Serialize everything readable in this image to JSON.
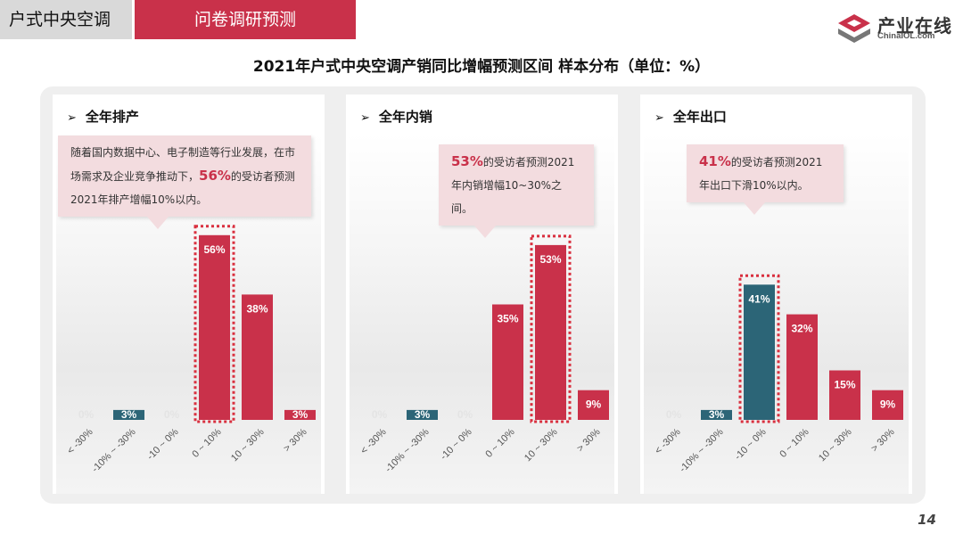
{
  "header": {
    "section_label": "户式中央空调",
    "active_tab": "问卷调研预测"
  },
  "logo": {
    "name_cn": "产业在线",
    "name_en": "ChinaIOL.com"
  },
  "title": "2021年户式中央空调产销同比增幅预测区间  样本分布（单位：%）",
  "page_number": "14",
  "colors": {
    "accent_red": "#c9314a",
    "teal": "#2c6577",
    "highlight_border": "#d9303f"
  },
  "panels": [
    {
      "title": "全年排产",
      "callout": {
        "text_before": "随着国内数据中心、电子制造等行业发展，在市场需求及企业竞争推动下，",
        "highlight": "56%",
        "text_after": "的受访者预测2021年排产增幅10%以内。"
      }
    },
    {
      "title": "全年内销",
      "callout": {
        "text_before": "",
        "highlight": "53%",
        "text_after": "的受访者预测2021年内销增幅10~30%之间。"
      }
    },
    {
      "title": "全年出口",
      "callout": {
        "text_before": "",
        "highlight": "41%",
        "text_after": "的受访者预测2021年出口下滑10%以内。"
      }
    }
  ],
  "chart_data": [
    {
      "type": "bar",
      "title": "全年排产",
      "categories": [
        "< -30%",
        "-10% ~ -30%",
        "-10 ~ 0%",
        "0 ~ 10%",
        "10 ~ 30%",
        "> 30%"
      ],
      "values": [
        0,
        3,
        0,
        56,
        38,
        3
      ],
      "bar_colors": [
        "#2c6577",
        "#2c6577",
        "#c9314a",
        "#c9314a",
        "#c9314a",
        "#c9314a"
      ],
      "highlight_index": 3,
      "ylim": [
        0,
        60
      ]
    },
    {
      "type": "bar",
      "title": "全年内销",
      "categories": [
        "< -30%",
        "-10% ~ -30%",
        "-10 ~ 0%",
        "0 ~ 10%",
        "10 ~ 30%",
        "> 30%"
      ],
      "values": [
        0,
        3,
        0,
        35,
        53,
        9
      ],
      "bar_colors": [
        "#2c6577",
        "#2c6577",
        "#c9314a",
        "#c9314a",
        "#c9314a",
        "#c9314a"
      ],
      "highlight_index": 4,
      "ylim": [
        0,
        60
      ]
    },
    {
      "type": "bar",
      "title": "全年出口",
      "categories": [
        "< -30%",
        "-10% ~ -30%",
        "-10 ~ 0%",
        "0 ~ 10%",
        "10 ~ 30%",
        "> 30%"
      ],
      "values": [
        0,
        3,
        41,
        32,
        15,
        9
      ],
      "bar_colors": [
        "#2c6577",
        "#2c6577",
        "#2c6577",
        "#c9314a",
        "#c9314a",
        "#c9314a"
      ],
      "highlight_index": 2,
      "ylim": [
        0,
        60
      ]
    }
  ]
}
